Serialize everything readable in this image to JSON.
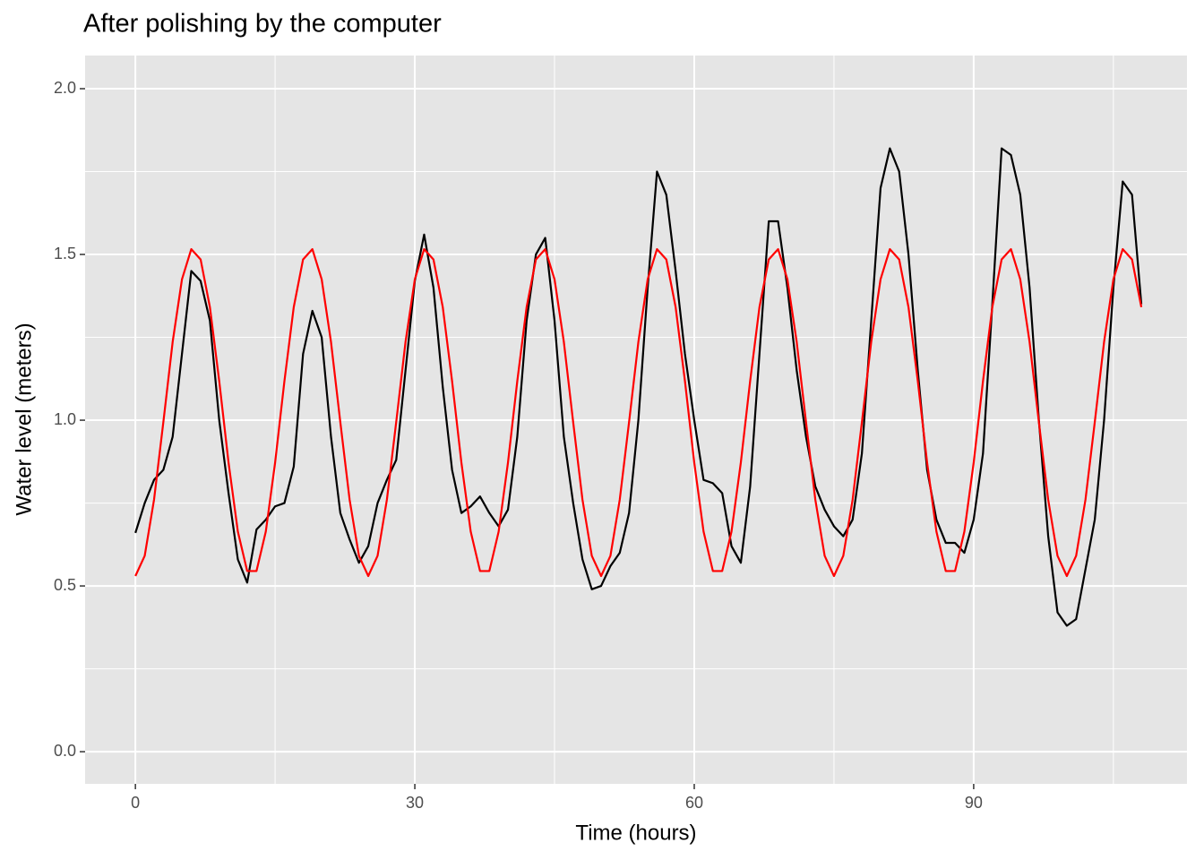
{
  "chart_data": {
    "type": "line",
    "title": "After polishing by the computer",
    "x_label": "Time (hours)",
    "y_label": "Water level (meters)",
    "x": [
      0,
      1,
      2,
      3,
      4,
      5,
      6,
      7,
      8,
      9,
      10,
      11,
      12,
      13,
      14,
      15,
      16,
      17,
      18,
      19,
      20,
      21,
      22,
      23,
      24,
      25,
      26,
      27,
      28,
      29,
      30,
      31,
      32,
      33,
      34,
      35,
      36,
      37,
      38,
      39,
      40,
      41,
      42,
      43,
      44,
      45,
      46,
      47,
      48,
      49,
      50,
      51,
      52,
      53,
      54,
      55,
      56,
      57,
      58,
      59,
      60,
      61,
      62,
      63,
      64,
      65,
      66,
      67,
      68,
      69,
      70,
      71,
      72,
      73,
      74,
      75,
      76,
      77,
      78,
      79,
      80,
      81,
      82,
      83,
      84,
      85,
      86,
      87,
      88,
      89,
      90,
      91,
      92,
      93,
      94,
      95,
      96,
      97,
      98,
      99,
      100,
      101,
      102,
      103,
      104,
      105,
      106,
      107,
      108
    ],
    "series": [
      {
        "color": "#000000",
        "values": [
          0.66,
          0.75,
          0.82,
          0.85,
          0.95,
          1.2,
          1.45,
          1.42,
          1.3,
          1.0,
          0.78,
          0.58,
          0.51,
          0.67,
          0.7,
          0.74,
          0.75,
          0.86,
          1.2,
          1.33,
          1.25,
          0.95,
          0.72,
          0.64,
          0.57,
          0.62,
          0.75,
          0.82,
          0.88,
          1.15,
          1.42,
          1.56,
          1.4,
          1.1,
          0.85,
          0.72,
          0.74,
          0.77,
          0.72,
          0.68,
          0.73,
          0.95,
          1.3,
          1.5,
          1.55,
          1.3,
          0.95,
          0.75,
          0.58,
          0.49,
          0.5,
          0.56,
          0.6,
          0.72,
          1.0,
          1.4,
          1.75,
          1.68,
          1.45,
          1.2,
          1.0,
          0.82,
          0.81,
          0.78,
          0.62,
          0.57,
          0.8,
          1.2,
          1.6,
          1.6,
          1.4,
          1.15,
          0.95,
          0.8,
          0.73,
          0.68,
          0.65,
          0.7,
          0.9,
          1.3,
          1.7,
          1.82,
          1.75,
          1.5,
          1.15,
          0.85,
          0.7,
          0.63,
          0.63,
          0.6,
          0.7,
          0.9,
          1.35,
          1.82,
          1.8,
          1.68,
          1.4,
          1.0,
          0.65,
          0.42,
          0.38,
          0.4,
          0.55,
          0.7,
          1.0,
          1.4,
          1.72,
          1.68,
          1.35
        ]
      },
      {
        "color": "#ff0000",
        "values": [
          0.53,
          0.591,
          0.76,
          0.994,
          1.236,
          1.425,
          1.516,
          1.485,
          1.341,
          1.118,
          0.872,
          0.664,
          0.545,
          0.545,
          0.664,
          0.872,
          1.118,
          1.341,
          1.485,
          1.516,
          1.425,
          1.236,
          0.994,
          0.76,
          0.591,
          0.53,
          0.591,
          0.76,
          0.994,
          1.236,
          1.425,
          1.516,
          1.485,
          1.341,
          1.118,
          0.872,
          0.664,
          0.545,
          0.545,
          0.664,
          0.872,
          1.118,
          1.341,
          1.485,
          1.516,
          1.425,
          1.236,
          0.994,
          0.76,
          0.591,
          0.53,
          0.591,
          0.76,
          0.994,
          1.236,
          1.425,
          1.516,
          1.485,
          1.341,
          1.118,
          0.872,
          0.664,
          0.545,
          0.545,
          0.664,
          0.872,
          1.118,
          1.341,
          1.485,
          1.516,
          1.425,
          1.236,
          0.994,
          0.76,
          0.591,
          0.53,
          0.591,
          0.76,
          0.994,
          1.236,
          1.425,
          1.516,
          1.485,
          1.341,
          1.118,
          0.872,
          0.664,
          0.545,
          0.545,
          0.664,
          0.872,
          1.118,
          1.341,
          1.485,
          1.516,
          1.425,
          1.236,
          0.994,
          0.76,
          0.591,
          0.53,
          0.591,
          0.76,
          0.994,
          1.236,
          1.425,
          1.516,
          1.485,
          1.341
        ]
      }
    ],
    "xlim": [
      -5.4,
      112.9
    ],
    "ylim": [
      -0.097,
      2.1
    ],
    "xticks": [
      0,
      30,
      60,
      90
    ],
    "yticks": [
      {
        "value": 0,
        "label": "0.0"
      },
      {
        "value": 0.5,
        "label": "0.5"
      },
      {
        "value": 1,
        "label": "1.0"
      },
      {
        "value": 1.5,
        "label": "1.5"
      },
      {
        "value": 2,
        "label": "2.0"
      }
    ],
    "x_minor_ticks": [
      15,
      45,
      75,
      105
    ],
    "y_minor_ticks": [
      0.25,
      0.75,
      1.25,
      1.75
    ],
    "grid": true,
    "panel_color": "#e5e5e5"
  }
}
